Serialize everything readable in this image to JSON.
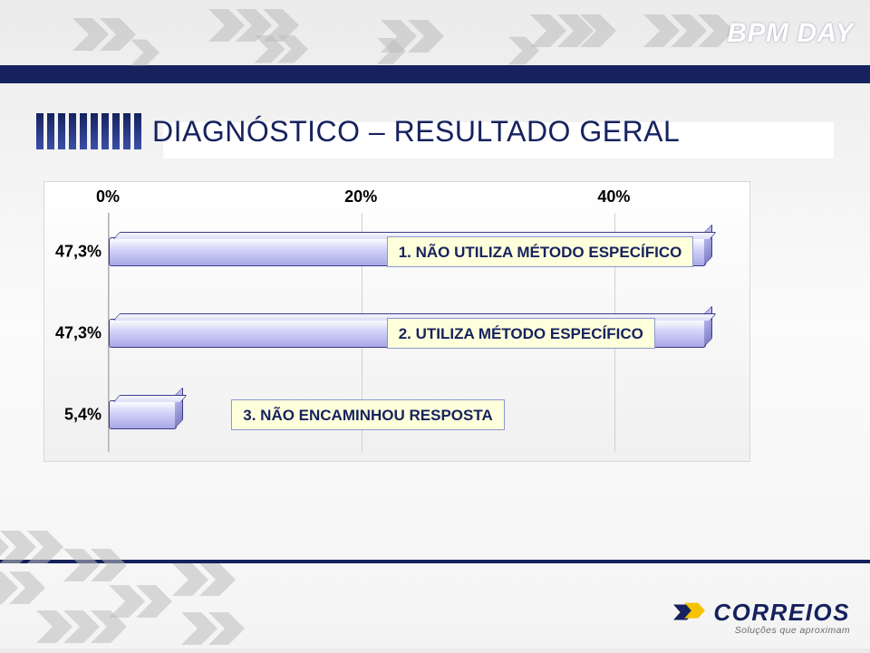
{
  "event_name": "BPM DAY",
  "slide_title": "DIAGNÓSTICO – RESULTADO GERAL",
  "chart": {
    "type": "bar",
    "orientation": "horizontal",
    "axis": {
      "min": 0,
      "max": 50,
      "tick_step": 20,
      "ticks": [
        {
          "value": 0,
          "label": "0%"
        },
        {
          "value": 20,
          "label": "20%"
        },
        {
          "value": 40,
          "label": "40%"
        }
      ],
      "label_fontsize": 18
    },
    "bars": [
      {
        "value": 47.3,
        "value_label": "47,3%",
        "label": "1. NÃO UTILIZA MÉTODO ESPECÍFICO"
      },
      {
        "value": 47.3,
        "value_label": "47,3%",
        "label": "2. UTILIZA MÉTODO ESPECÍFICO"
      },
      {
        "value": 5.4,
        "value_label": "5,4%",
        "label": "3. NÃO ENCAMINHOU RESPOSTA"
      }
    ],
    "bar_fill_top": "#ffffff",
    "bar_fill_bottom": "#a8a8e8",
    "bar_border": "#3a3a8a",
    "panel_bg_top": "#ffffff",
    "panel_bg_bottom": "#f0f0f0",
    "grid_color": "#d0d0d0",
    "label_box_bg": "#feffdb",
    "label_box_border": "#8c99d0",
    "value_label_fontsize": 18,
    "bar_label_fontsize": 17
  },
  "branding": {
    "logo_text": "CORREIOS",
    "tagline": "Soluções que aproximam",
    "logo_mark_colors": {
      "blue": "#16225e",
      "yellow": "#f7c200"
    }
  },
  "palette": {
    "navy": "#16225e",
    "accent_yellow": "#f7c200",
    "page_bg": "#f1f1f1",
    "chevron_fill": "#c9c9c9"
  }
}
